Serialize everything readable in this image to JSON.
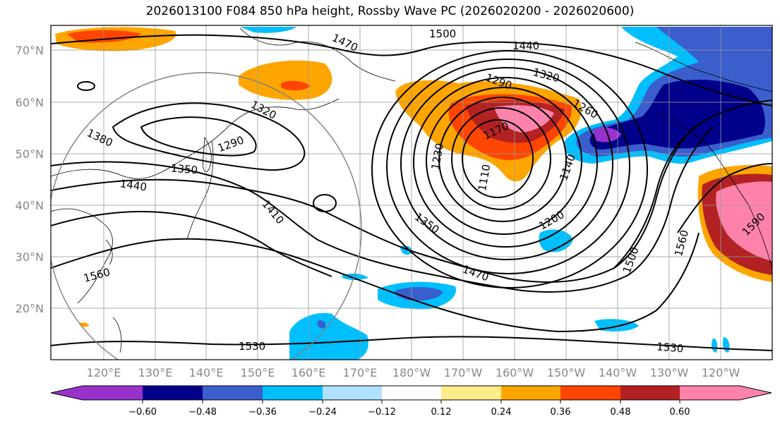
{
  "title": "2026013100 F084 850 hPa height, Rossby Wave PC (2026020200 - 2026020600)",
  "colors": {
    "levels": [
      "#9932cc",
      "#00008b",
      "#3a5fcd",
      "#00bfff",
      "#b0e2ff",
      "#ffffff",
      "#ffec8b",
      "#ffa500",
      "#ff4500",
      "#b22222",
      "#ff82ab"
    ],
    "contour": "#000000",
    "grid": "#9a9a9a",
    "circle": "#808080"
  },
  "lat_labels": [
    "70°N",
    "60°N",
    "50°N",
    "40°N",
    "30°N",
    "20°N"
  ],
  "lon_labels": [
    "120°E",
    "130°E",
    "140°E",
    "150°E",
    "160°E",
    "170°E",
    "180°W",
    "170°W",
    "160°W",
    "150°W",
    "140°W",
    "130°W",
    "120°W"
  ],
  "colorbar_ticks": [
    "−0.60",
    "−0.48",
    "−0.36",
    "−0.24",
    "−0.12",
    "0.12",
    "0.24",
    "0.36",
    "0.48",
    "0.60"
  ],
  "contour_labels": [
    "1500",
    "1470",
    "1440",
    "1320",
    "1290",
    "1260",
    "1320",
    "1290",
    "1380",
    "1350",
    "1440",
    "1410",
    "1230",
    "1170",
    "1110",
    "1140",
    "1200",
    "1350",
    "1470",
    "1500",
    "1560",
    "1590",
    "1560",
    "1530",
    "1530"
  ]
}
